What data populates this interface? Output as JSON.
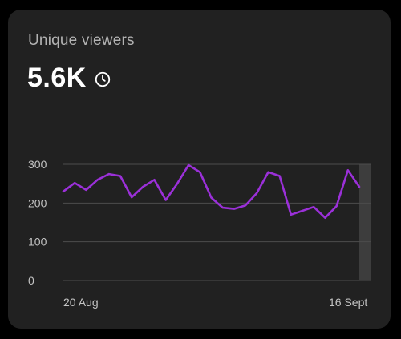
{
  "card": {
    "title": "Unique viewers",
    "value": "5.6K",
    "info_icon": "clock-icon"
  },
  "colors": {
    "line": "#9b30d9",
    "grid": "#4d4d4d",
    "highlight": "#3d3d3d"
  },
  "chart_data": {
    "type": "line",
    "title": "",
    "xlabel": "",
    "ylabel": "",
    "ylim": [
      0,
      300
    ],
    "yticks": [
      "300",
      "200",
      "100",
      "0"
    ],
    "x_tick_labels": {
      "first": "20 Aug",
      "last": "16 Sept"
    },
    "grid": true,
    "highlighted_last_point": true,
    "series": [
      {
        "values": [
          230,
          252,
          234,
          260,
          275,
          270,
          215,
          242,
          260,
          208,
          250,
          298,
          280,
          214,
          188,
          185,
          194,
          226,
          280,
          270,
          170,
          180,
          190,
          162,
          192,
          285,
          242
        ]
      }
    ]
  }
}
